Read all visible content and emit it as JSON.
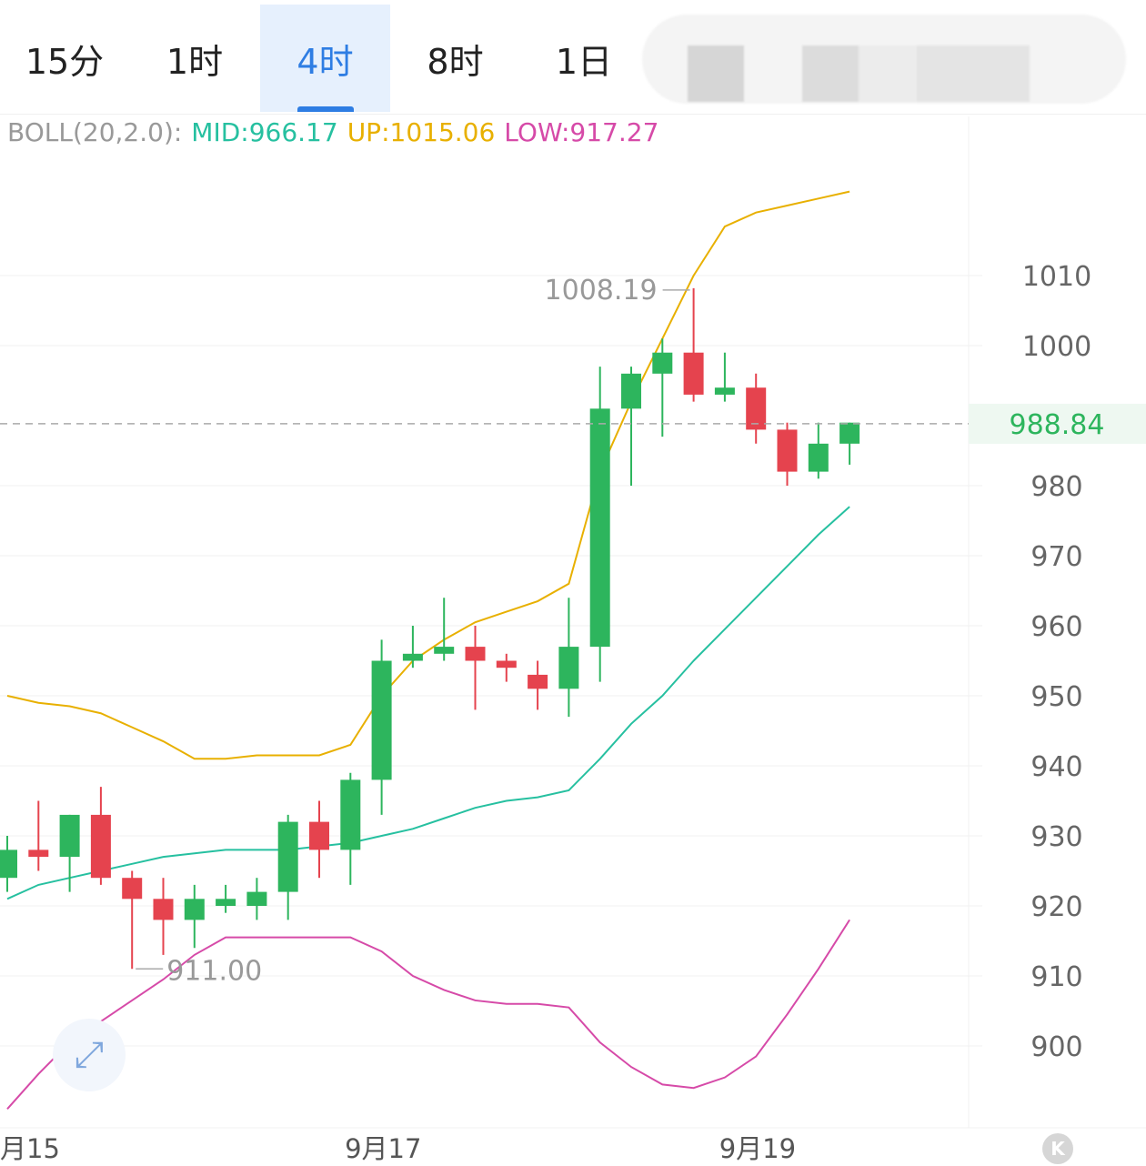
{
  "tabs": [
    {
      "label": "15分",
      "active": false
    },
    {
      "label": "1时",
      "active": false
    },
    {
      "label": "4时",
      "active": true
    },
    {
      "label": "8时",
      "active": false
    },
    {
      "label": "1日",
      "active": false
    }
  ],
  "indicator": {
    "name": "BOLL(20,2.0):",
    "mid_label": "MID:966.17",
    "up_label": "UP:1015.06",
    "low_label": "LOW:917.27",
    "colors": {
      "name": "#999999",
      "mid": "#26c0a0",
      "up": "#e8b000",
      "low": "#d64aa8"
    }
  },
  "current_price": "988.84",
  "icons": {
    "expand": "expand-arrows-icon",
    "k": "k-logo-icon"
  },
  "chart_data": {
    "type": "candlestick",
    "y_range": [
      894,
      1021
    ],
    "y_ticks": [
      1010,
      1000,
      980,
      970,
      960,
      950,
      940,
      930,
      920,
      910,
      900
    ],
    "x_labels": [
      "月15",
      "9月17",
      "9月19"
    ],
    "x_label_candle_index": [
      0,
      11,
      23
    ],
    "current_price": 988.84,
    "max_label": "1008.19",
    "min_label": "911.00",
    "max_candle_index": 22,
    "min_candle_index": 4,
    "colors": {
      "up": "#2db55d",
      "down": "#e5434e",
      "mid": "#26c0a0",
      "upper": "#e8b000",
      "lower": "#d64aa8"
    },
    "candles": [
      {
        "o": 924,
        "h": 930,
        "l": 922,
        "c": 928
      },
      {
        "o": 928,
        "h": 935,
        "l": 925,
        "c": 927
      },
      {
        "o": 927,
        "h": 933,
        "l": 922,
        "c": 933
      },
      {
        "o": 933,
        "h": 937,
        "l": 923,
        "c": 924
      },
      {
        "o": 924,
        "h": 925,
        "l": 911,
        "c": 921
      },
      {
        "o": 921,
        "h": 924,
        "l": 913,
        "c": 918
      },
      {
        "o": 918,
        "h": 923,
        "l": 914,
        "c": 921
      },
      {
        "o": 920,
        "h": 923,
        "l": 919,
        "c": 921
      },
      {
        "o": 920,
        "h": 924,
        "l": 918,
        "c": 922
      },
      {
        "o": 922,
        "h": 933,
        "l": 918,
        "c": 932
      },
      {
        "o": 932,
        "h": 935,
        "l": 924,
        "c": 928
      },
      {
        "o": 928,
        "h": 939,
        "l": 923,
        "c": 938
      },
      {
        "o": 938,
        "h": 958,
        "l": 933,
        "c": 955
      },
      {
        "o": 955,
        "h": 960,
        "l": 954,
        "c": 956
      },
      {
        "o": 956,
        "h": 964,
        "l": 955,
        "c": 957
      },
      {
        "o": 957,
        "h": 960,
        "l": 948,
        "c": 955
      },
      {
        "o": 955,
        "h": 956,
        "l": 952,
        "c": 954
      },
      {
        "o": 953,
        "h": 955,
        "l": 948,
        "c": 951
      },
      {
        "o": 951,
        "h": 964,
        "l": 947,
        "c": 957
      },
      {
        "o": 957,
        "h": 997,
        "l": 952,
        "c": 991
      },
      {
        "o": 991,
        "h": 997,
        "l": 980,
        "c": 996
      },
      {
        "o": 996,
        "h": 1001,
        "l": 987,
        "c": 999
      },
      {
        "o": 999,
        "h": 1008.19,
        "l": 992,
        "c": 993
      },
      {
        "o": 993,
        "h": 999,
        "l": 992,
        "c": 994
      },
      {
        "o": 994,
        "h": 996,
        "l": 986,
        "c": 988
      },
      {
        "o": 988,
        "h": 989,
        "l": 980,
        "c": 982
      },
      {
        "o": 982,
        "h": 989,
        "l": 981,
        "c": 986
      },
      {
        "o": 986,
        "h": 989,
        "l": 983,
        "c": 989
      }
    ],
    "boll_mid": [
      921,
      923,
      924,
      925,
      926,
      927,
      927.5,
      928,
      928,
      928,
      928.5,
      929,
      930,
      931,
      932.5,
      934,
      935,
      935.5,
      936.5,
      941,
      946,
      950,
      955,
      959.5,
      964,
      968.5,
      973,
      977
    ],
    "boll_up": [
      950,
      949,
      948.5,
      947.5,
      945.5,
      943.5,
      941,
      941,
      941.5,
      941.5,
      941.5,
      943,
      950,
      955,
      958,
      960.5,
      962,
      963.5,
      966,
      982,
      992,
      1001,
      1010,
      1017,
      1019,
      1020,
      1021,
      1022
    ],
    "boll_low": [
      891,
      896,
      900.5,
      903.5,
      906.5,
      909.5,
      913,
      915.5,
      915.5,
      915.5,
      915.5,
      915.5,
      913.5,
      910,
      908,
      906.5,
      906,
      906,
      905.5,
      900.5,
      897,
      894.5,
      894,
      895.5,
      898.5,
      904.5,
      911,
      918
    ]
  }
}
